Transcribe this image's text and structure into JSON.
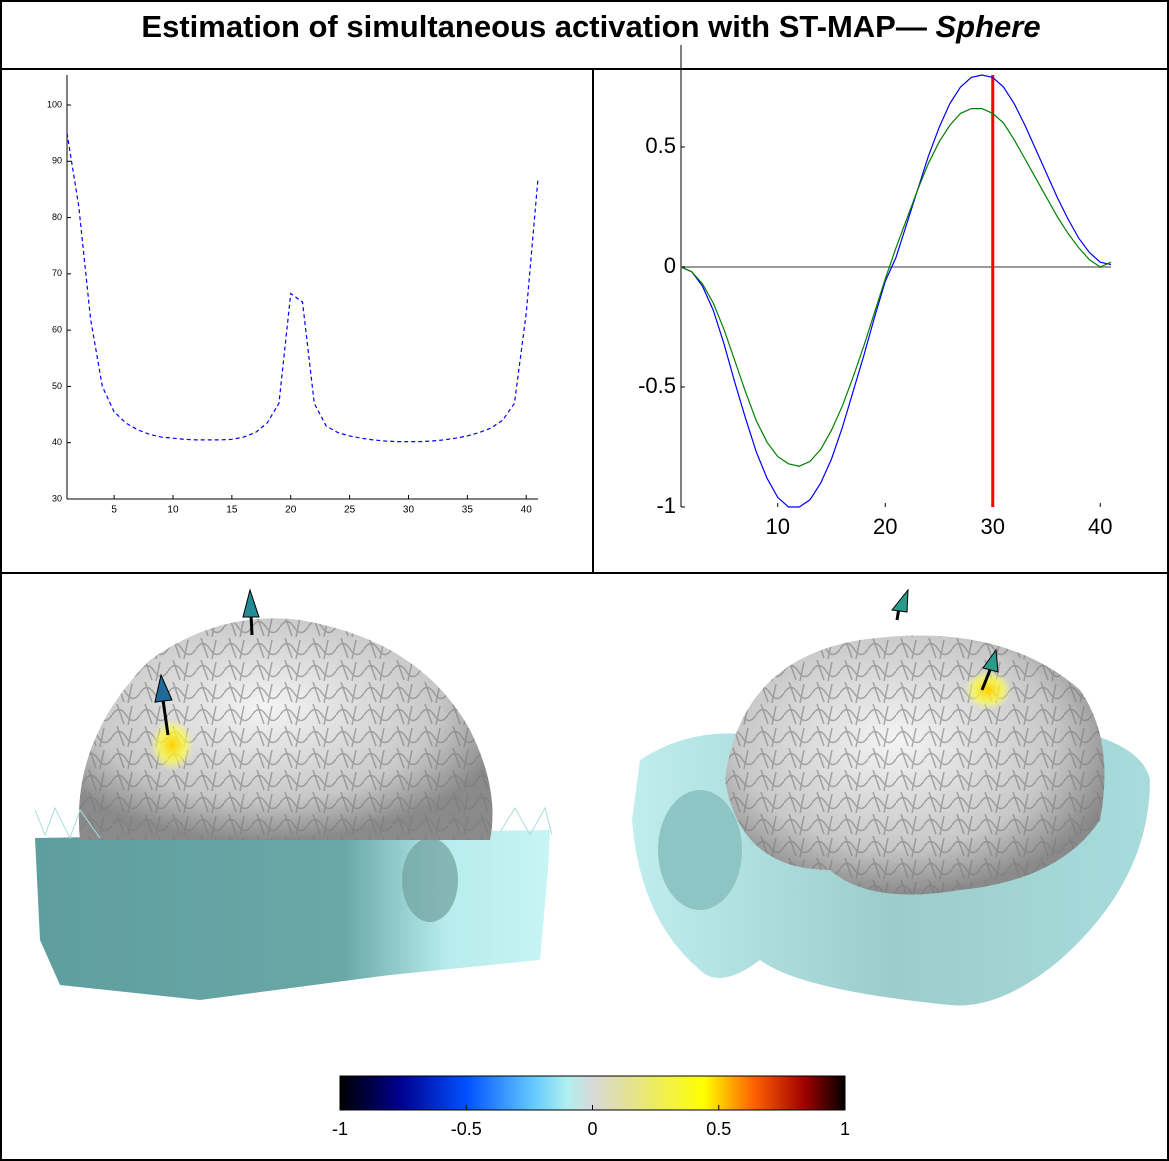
{
  "title": "Estimation of simultaneous activation with ST-MAP—",
  "title_emphasis": "Sphere",
  "chart_data": [
    {
      "type": "line",
      "x": [
        1,
        2,
        3,
        4,
        5,
        6,
        7,
        8,
        9,
        10,
        11,
        12,
        13,
        14,
        15,
        16,
        17,
        18,
        19,
        20,
        21,
        22,
        23,
        24,
        25,
        26,
        27,
        28,
        29,
        30,
        31,
        32,
        33,
        34,
        35,
        36,
        37,
        38,
        39,
        40,
        41
      ],
      "series": [
        {
          "color": "#0000ff",
          "values": [
            95,
            82,
            62,
            50,
            45.5,
            43.5,
            42.3,
            41.5,
            41,
            40.8,
            40.6,
            40.5,
            40.5,
            40.5,
            40.6,
            41,
            41.8,
            43.5,
            47,
            66.5,
            65,
            47,
            43,
            41.8,
            41.2,
            40.8,
            40.5,
            40.3,
            40.2,
            40.2,
            40.2,
            40.3,
            40.5,
            40.8,
            41.2,
            41.8,
            42.6,
            44,
            47,
            63,
            87
          ]
        }
      ],
      "xlim": [
        1,
        41
      ],
      "ylim": [
        30,
        100
      ],
      "xticks": [
        5,
        10,
        15,
        20,
        25,
        30,
        35,
        40
      ],
      "yticks": [
        30,
        40,
        50,
        60,
        70,
        80,
        90,
        100
      ],
      "dashed": true
    },
    {
      "type": "line",
      "x": [
        1,
        2,
        3,
        4,
        5,
        6,
        7,
        8,
        9,
        10,
        11,
        12,
        13,
        14,
        15,
        16,
        17,
        18,
        19,
        20,
        21,
        22,
        23,
        24,
        25,
        26,
        27,
        28,
        29,
        30,
        31,
        32,
        33,
        34,
        35,
        36,
        37,
        38,
        39,
        40,
        41
      ],
      "series": [
        {
          "color": "#0000ff",
          "values": [
            0,
            -0.02,
            -0.08,
            -0.18,
            -0.32,
            -0.48,
            -0.63,
            -0.77,
            -0.88,
            -0.96,
            -1.0,
            -1.0,
            -0.97,
            -0.9,
            -0.8,
            -0.67,
            -0.52,
            -0.37,
            -0.21,
            -0.06,
            0.04,
            0.18,
            0.32,
            0.46,
            0.58,
            0.68,
            0.75,
            0.79,
            0.8,
            0.79,
            0.75,
            0.68,
            0.59,
            0.49,
            0.39,
            0.29,
            0.2,
            0.12,
            0.06,
            0.02,
            0.01
          ]
        },
        {
          "color": "#008000",
          "values": [
            0,
            -0.02,
            -0.07,
            -0.15,
            -0.26,
            -0.39,
            -0.52,
            -0.64,
            -0.73,
            -0.79,
            -0.82,
            -0.83,
            -0.81,
            -0.76,
            -0.68,
            -0.58,
            -0.46,
            -0.33,
            -0.19,
            -0.05,
            0.08,
            0.2,
            0.32,
            0.43,
            0.52,
            0.59,
            0.64,
            0.66,
            0.66,
            0.64,
            0.6,
            0.53,
            0.45,
            0.37,
            0.29,
            0.21,
            0.14,
            0.08,
            0.03,
            0,
            0.02
          ]
        }
      ],
      "xlim": [
        1,
        41
      ],
      "ylim": [
        -1,
        0.8
      ],
      "xticks": [
        10,
        20,
        30,
        40
      ],
      "yticks": [
        -1,
        -0.5,
        0,
        0.5
      ],
      "cursor_x": 30,
      "cursor_color": "#ff0000"
    },
    {
      "type": "colorbar",
      "xlim": [
        -1,
        1
      ],
      "xticks": [
        -1,
        -0.5,
        0,
        0.5,
        1
      ]
    }
  ]
}
